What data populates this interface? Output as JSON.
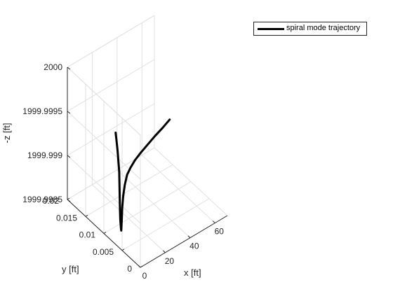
{
  "chart_data": {
    "type": "line",
    "projection": "3d",
    "grid": true,
    "legend_position": "top-right",
    "xlabel": "x [ft]",
    "ylabel": "y [ft]",
    "zlabel": "-z [ft]",
    "xlim": [
      0,
      70
    ],
    "ylim": [
      0,
      0.02
    ],
    "zlim": [
      1999.9985,
      2000
    ],
    "xticks": [
      0,
      20,
      40,
      60
    ],
    "yticks": [
      0,
      0.005,
      0.01,
      0.015,
      0.02
    ],
    "zticks": [
      1999.9985,
      1999.999,
      1999.9995,
      2000
    ],
    "xtick_labels": [
      "0",
      "20",
      "40",
      "60"
    ],
    "ytick_labels": [
      "0",
      "0.005",
      "0.01",
      "0.015",
      "0.02"
    ],
    "ztick_labels": [
      "1999.9985",
      "1999.999",
      "1999.9995",
      "2000"
    ],
    "series": [
      {
        "name": "spiral mode trajectory",
        "color": "#000000",
        "points": [
          {
            "x": 10,
            "y": 0.0092,
            "z": 1999.99915
          },
          {
            "x": 9,
            "y": 0.0088,
            "z": 1999.99905
          },
          {
            "x": 8,
            "y": 0.0084,
            "z": 1999.99895
          },
          {
            "x": 6.5,
            "y": 0.0078,
            "z": 1999.9988
          },
          {
            "x": 5,
            "y": 0.0072,
            "z": 1999.99872
          },
          {
            "x": 4,
            "y": 0.0067,
            "z": 1999.99866
          },
          {
            "x": 4,
            "y": 0.0066,
            "z": 1999.99863
          },
          {
            "x": 5,
            "y": 0.0069,
            "z": 1999.99864
          },
          {
            "x": 6.5,
            "y": 0.0073,
            "z": 1999.99871
          },
          {
            "x": 8,
            "y": 0.0077,
            "z": 1999.99881
          },
          {
            "x": 9.6,
            "y": 0.008,
            "z": 1999.99891
          },
          {
            "x": 11.5,
            "y": 0.0082,
            "z": 1999.99902
          },
          {
            "x": 14,
            "y": 0.0084,
            "z": 1999.99911
          },
          {
            "x": 17,
            "y": 0.0085,
            "z": 1999.99916
          },
          {
            "x": 21,
            "y": 0.0086,
            "z": 1999.99921
          },
          {
            "x": 26,
            "y": 0.0087,
            "z": 1999.99925
          },
          {
            "x": 32,
            "y": 0.0088,
            "z": 1999.99929
          },
          {
            "x": 38,
            "y": 0.0089,
            "z": 1999.99933
          },
          {
            "x": 44,
            "y": 0.0089,
            "z": 1999.99937
          },
          {
            "x": 50,
            "y": 0.009,
            "z": 1999.99941
          }
        ],
        "branch_points": [
          {
            "x": 10,
            "y": 0.0092,
            "z": 1999.99915
          },
          {
            "x": 10.5,
            "y": 0.0096,
            "z": 1999.99925
          },
          {
            "x": 11,
            "y": 0.01,
            "z": 1999.99935
          },
          {
            "x": 11.3,
            "y": 0.0104,
            "z": 1999.99945
          },
          {
            "x": 11.5,
            "y": 0.0107,
            "z": 1999.99952
          }
        ]
      }
    ]
  }
}
